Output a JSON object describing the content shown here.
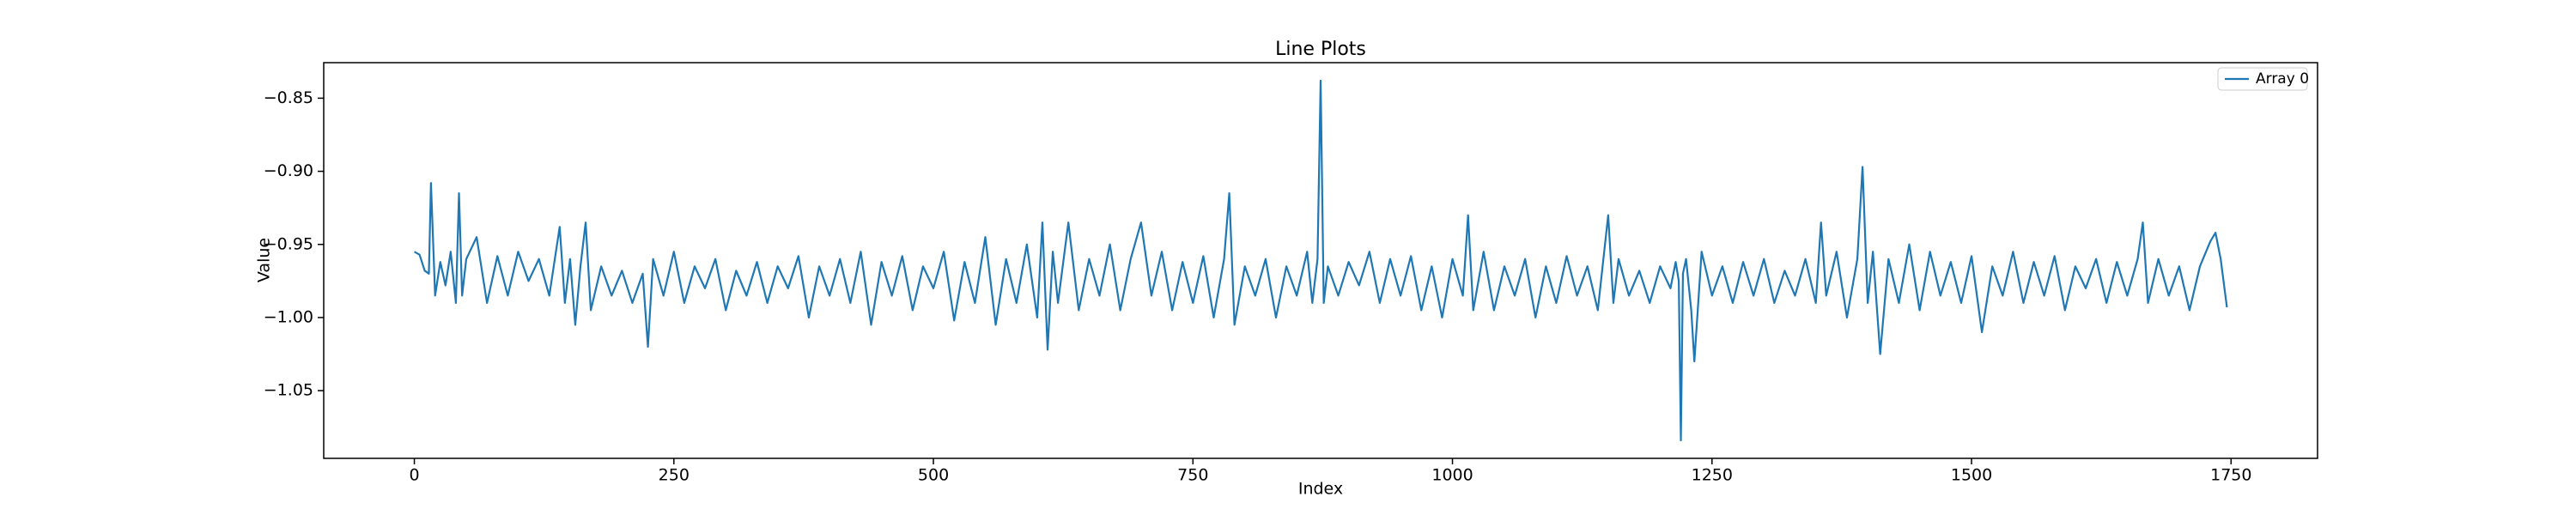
{
  "chart_data": {
    "type": "line",
    "title": "Line Plots",
    "x_label": "Index",
    "y_label": "Value",
    "xlim": [
      -87.3,
      1833.3
    ],
    "ylim": [
      -1.0963,
      -0.8257
    ],
    "xticks": [
      0,
      250,
      500,
      750,
      1000,
      1250,
      1500,
      1750
    ],
    "yticks": [
      {
        "value": -1.05,
        "label": "−1.05"
      },
      {
        "value": -1.0,
        "label": "−1.00"
      },
      {
        "value": -0.95,
        "label": "−0.95"
      },
      {
        "value": -0.9,
        "label": "−0.90"
      },
      {
        "value": -0.85,
        "label": "−0.85"
      }
    ],
    "grid": false,
    "legend": "upper right",
    "x": [
      0,
      5,
      10,
      14,
      16,
      20,
      25,
      30,
      35,
      40,
      43,
      46,
      50,
      60,
      70,
      80,
      90,
      100,
      110,
      120,
      130,
      140,
      145,
      150,
      155,
      160,
      165,
      170,
      180,
      190,
      200,
      210,
      220,
      225,
      230,
      240,
      250,
      260,
      270,
      280,
      290,
      300,
      310,
      320,
      330,
      340,
      350,
      360,
      370,
      380,
      390,
      400,
      410,
      420,
      430,
      440,
      450,
      460,
      470,
      480,
      490,
      500,
      510,
      520,
      530,
      540,
      550,
      560,
      570,
      580,
      590,
      600,
      605,
      610,
      615,
      620,
      630,
      640,
      650,
      660,
      670,
      680,
      690,
      700,
      710,
      720,
      730,
      740,
      750,
      760,
      770,
      780,
      785,
      790,
      800,
      810,
      820,
      830,
      840,
      850,
      860,
      865,
      870,
      873,
      876,
      880,
      890,
      900,
      910,
      920,
      930,
      940,
      950,
      960,
      970,
      980,
      990,
      1000,
      1010,
      1015,
      1020,
      1030,
      1040,
      1050,
      1060,
      1070,
      1080,
      1090,
      1100,
      1110,
      1120,
      1130,
      1140,
      1150,
      1155,
      1160,
      1170,
      1180,
      1190,
      1200,
      1210,
      1215,
      1218,
      1220,
      1222,
      1225,
      1230,
      1233,
      1240,
      1250,
      1260,
      1270,
      1280,
      1290,
      1300,
      1310,
      1320,
      1330,
      1340,
      1350,
      1355,
      1360,
      1370,
      1380,
      1390,
      1395,
      1400,
      1405,
      1410,
      1412,
      1420,
      1430,
      1440,
      1450,
      1460,
      1470,
      1480,
      1490,
      1500,
      1510,
      1520,
      1530,
      1540,
      1550,
      1560,
      1570,
      1580,
      1590,
      1600,
      1610,
      1620,
      1630,
      1640,
      1650,
      1660,
      1665,
      1670,
      1680,
      1690,
      1700,
      1710,
      1720,
      1730,
      1735,
      1740,
      1746
    ],
    "series": [
      {
        "name": "Array 0",
        "color": "#1f77b4",
        "values": [
          -0.955,
          -0.957,
          -0.968,
          -0.97,
          -0.908,
          -0.985,
          -0.962,
          -0.978,
          -0.955,
          -0.99,
          -0.915,
          -0.985,
          -0.96,
          -0.945,
          -0.99,
          -0.958,
          -0.985,
          -0.955,
          -0.975,
          -0.96,
          -0.985,
          -0.938,
          -0.99,
          -0.96,
          -1.005,
          -0.965,
          -0.935,
          -0.995,
          -0.965,
          -0.985,
          -0.968,
          -0.99,
          -0.97,
          -1.02,
          -0.96,
          -0.985,
          -0.955,
          -0.99,
          -0.965,
          -0.98,
          -0.96,
          -0.995,
          -0.968,
          -0.985,
          -0.962,
          -0.99,
          -0.965,
          -0.98,
          -0.958,
          -1.0,
          -0.965,
          -0.985,
          -0.96,
          -0.99,
          -0.955,
          -1.005,
          -0.962,
          -0.985,
          -0.958,
          -0.995,
          -0.965,
          -0.98,
          -0.955,
          -1.002,
          -0.962,
          -0.99,
          -0.945,
          -1.005,
          -0.96,
          -0.99,
          -0.95,
          -1.0,
          -0.935,
          -1.022,
          -0.955,
          -0.99,
          -0.935,
          -0.995,
          -0.96,
          -0.985,
          -0.95,
          -0.995,
          -0.96,
          -0.935,
          -0.985,
          -0.955,
          -0.995,
          -0.962,
          -0.99,
          -0.958,
          -1.0,
          -0.96,
          -0.915,
          -1.005,
          -0.965,
          -0.985,
          -0.96,
          -1.0,
          -0.965,
          -0.985,
          -0.955,
          -0.99,
          -0.96,
          -0.838,
          -0.99,
          -0.965,
          -0.985,
          -0.962,
          -0.978,
          -0.955,
          -0.99,
          -0.96,
          -0.985,
          -0.958,
          -0.995,
          -0.965,
          -1.0,
          -0.96,
          -0.985,
          -0.93,
          -0.995,
          -0.955,
          -0.995,
          -0.965,
          -0.985,
          -0.96,
          -1.0,
          -0.965,
          -0.99,
          -0.958,
          -0.985,
          -0.965,
          -0.995,
          -0.93,
          -0.99,
          -0.96,
          -0.985,
          -0.968,
          -0.99,
          -0.965,
          -0.98,
          -0.962,
          -0.975,
          -1.084,
          -0.97,
          -0.96,
          -0.995,
          -1.03,
          -0.955,
          -0.985,
          -0.965,
          -0.99,
          -0.962,
          -0.985,
          -0.96,
          -0.99,
          -0.968,
          -0.985,
          -0.96,
          -0.99,
          -0.935,
          -0.985,
          -0.955,
          -1.0,
          -0.96,
          -0.897,
          -0.99,
          -0.955,
          -1.005,
          -1.025,
          -0.96,
          -0.99,
          -0.95,
          -0.995,
          -0.955,
          -0.985,
          -0.962,
          -0.99,
          -0.958,
          -1.01,
          -0.965,
          -0.985,
          -0.955,
          -0.99,
          -0.962,
          -0.985,
          -0.958,
          -0.995,
          -0.965,
          -0.98,
          -0.96,
          -0.99,
          -0.962,
          -0.985,
          -0.96,
          -0.935,
          -0.99,
          -0.96,
          -0.985,
          -0.965,
          -0.995,
          -0.965,
          -0.948,
          -0.942,
          -0.96,
          -0.993
        ]
      }
    ]
  }
}
